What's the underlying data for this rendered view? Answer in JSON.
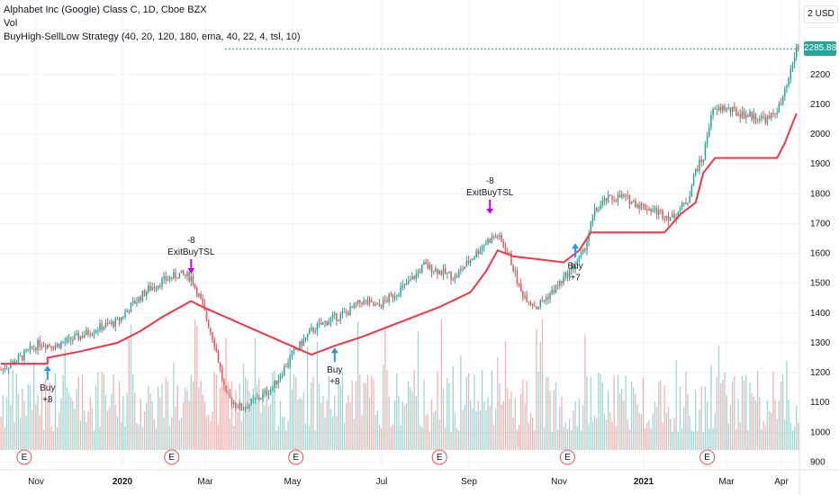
{
  "header": {
    "title": "Alphabet Inc (Google) Class C, 1D, Cboe BZX",
    "volume_label": "Vol",
    "strategy_label": "BuyHigh-SellLow Strategy (40, 20, 120, 180, ema, 40, 22, 4, tsl, 10)"
  },
  "price_axis": {
    "currency": "2 USD",
    "last_price": "2285.88"
  },
  "colors": {
    "up": "#26a69a",
    "down": "#ef5350",
    "stop_line": "#f23645",
    "buy_arrow": "#2196f3",
    "exit_arrow": "#c300ff",
    "earnings": "#ef5350"
  },
  "chart_data": {
    "type": "candlestick",
    "yticks": [
      900,
      1000,
      1100,
      1200,
      1300,
      1400,
      1500,
      1600,
      1700,
      1800,
      1900,
      2000,
      2100,
      2200
    ],
    "ylim": [
      880,
      2450
    ],
    "xticks": [
      "Nov",
      "2020",
      "Mar",
      "May",
      "Jul",
      "Sep",
      "Nov",
      "2021",
      "Mar",
      "Apr"
    ],
    "price_path": [
      [
        0,
        1210
      ],
      [
        10,
        1250
      ],
      [
        20,
        1300
      ],
      [
        28,
        1290
      ],
      [
        40,
        1320
      ],
      [
        50,
        1350
      ],
      [
        60,
        1370
      ],
      [
        68,
        1430
      ],
      [
        76,
        1480
      ],
      [
        84,
        1510
      ],
      [
        92,
        1530
      ],
      [
        98,
        1520
      ],
      [
        103,
        1440
      ],
      [
        110,
        1300
      ],
      [
        116,
        1120
      ],
      [
        124,
        1080
      ],
      [
        132,
        1110
      ],
      [
        140,
        1150
      ],
      [
        150,
        1260
      ],
      [
        160,
        1340
      ],
      [
        170,
        1380
      ],
      [
        178,
        1400
      ],
      [
        186,
        1440
      ],
      [
        194,
        1420
      ],
      [
        202,
        1460
      ],
      [
        210,
        1500
      ],
      [
        218,
        1560
      ],
      [
        226,
        1540
      ],
      [
        234,
        1520
      ],
      [
        242,
        1580
      ],
      [
        250,
        1640
      ],
      [
        256,
        1660
      ],
      [
        262,
        1590
      ],
      [
        268,
        1470
      ],
      [
        276,
        1420
      ],
      [
        284,
        1470
      ],
      [
        292,
        1530
      ],
      [
        300,
        1600
      ],
      [
        306,
        1740
      ],
      [
        312,
        1780
      ],
      [
        320,
        1790
      ],
      [
        330,
        1760
      ],
      [
        338,
        1740
      ],
      [
        346,
        1720
      ],
      [
        354,
        1780
      ],
      [
        358,
        1880
      ],
      [
        362,
        1920
      ],
      [
        366,
        2070
      ],
      [
        372,
        2090
      ],
      [
        380,
        2070
      ],
      [
        388,
        2060
      ],
      [
        396,
        2050
      ],
      [
        402,
        2100
      ],
      [
        406,
        2180
      ],
      [
        410,
        2290
      ]
    ],
    "stop_line": [
      [
        0,
        1230
      ],
      [
        24,
        1230
      ],
      [
        24,
        1250
      ],
      [
        40,
        1270
      ],
      [
        60,
        1300
      ],
      [
        72,
        1340
      ],
      [
        84,
        1390
      ],
      [
        98,
        1440
      ],
      [
        104,
        1420
      ],
      [
        160,
        1260
      ],
      [
        172,
        1290
      ],
      [
        186,
        1320
      ],
      [
        206,
        1370
      ],
      [
        226,
        1420
      ],
      [
        242,
        1470
      ],
      [
        250,
        1540
      ],
      [
        256,
        1610
      ],
      [
        264,
        1590
      ],
      [
        290,
        1570
      ],
      [
        298,
        1610
      ],
      [
        304,
        1670
      ],
      [
        342,
        1670
      ],
      [
        350,
        1730
      ],
      [
        358,
        1770
      ],
      [
        362,
        1870
      ],
      [
        368,
        1920
      ],
      [
        400,
        1920
      ],
      [
        404,
        1970
      ],
      [
        410,
        2070
      ]
    ],
    "signals": [
      {
        "bar": 24,
        "type": "buy",
        "label": "Buy",
        "qty": "+8",
        "price": 1230
      },
      {
        "bar": 98,
        "type": "exit",
        "label": "ExitBuyTSL",
        "qty": "-8",
        "price": 1520
      },
      {
        "bar": 172,
        "type": "buy",
        "label": "Buy",
        "qty": "+8",
        "price": 1290
      },
      {
        "bar": 252,
        "type": "exit",
        "label": "ExitBuyTSL",
        "qty": "-8",
        "price": 1720
      },
      {
        "bar": 296,
        "type": "buy",
        "label": "Buy",
        "qty": "+7",
        "price": 1640
      }
    ],
    "earnings_markers": [
      {
        "bar": 12,
        "label": "E"
      },
      {
        "bar": 88,
        "label": "E"
      },
      {
        "bar": 152,
        "label": "E"
      },
      {
        "bar": 226,
        "label": "E"
      },
      {
        "bar": 292,
        "label": "E"
      },
      {
        "bar": 364,
        "label": "E"
      }
    ]
  }
}
